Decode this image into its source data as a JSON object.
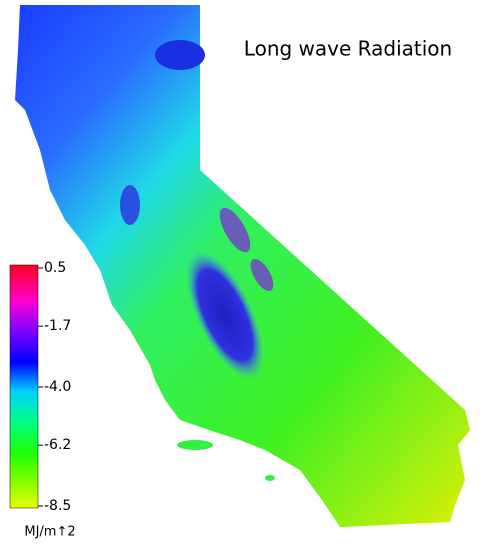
{
  "title": "Long wave Radiation",
  "colorbar": {
    "ticks": [
      0.5,
      -1.7,
      {
        "value": -4,
        "label": "-4.0"
      },
      -6.2,
      -8.5
    ],
    "unit": "MJ/m↑2"
  }
}
